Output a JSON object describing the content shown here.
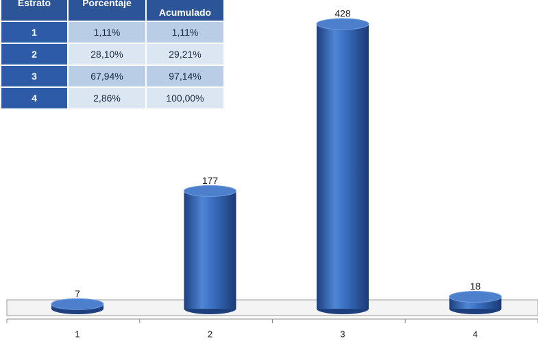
{
  "chart_data": {
    "type": "bar",
    "categories": [
      "1",
      "2",
      "3",
      "4"
    ],
    "values": [
      7,
      177,
      428,
      18
    ],
    "color": "#3a6fc0"
  },
  "table": {
    "header": [
      "Estrato",
      "Porcentaje",
      "Acumulado"
    ],
    "rows": [
      [
        "1",
        "1,11%",
        "1,11%"
      ],
      [
        "2",
        "28,10%",
        "29,21%"
      ],
      [
        "3",
        "67,94%",
        "97,14%"
      ],
      [
        "4",
        "2,86%",
        "100,00%"
      ]
    ]
  }
}
